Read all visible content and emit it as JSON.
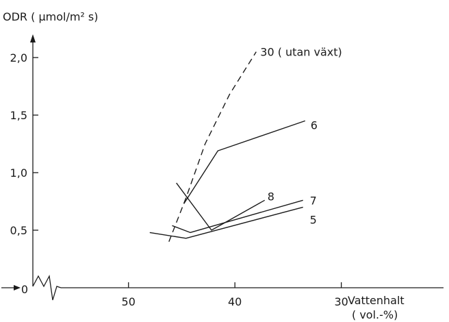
{
  "chart_data": {
    "type": "line",
    "title": "",
    "ylabel": "ODR ( µmol/m² s)",
    "xlabel": "Vattenhalt",
    "xlabel_unit": "( vol.-%)",
    "x_reversed": true,
    "xlim": [
      55,
      22
    ],
    "ylim": [
      0,
      2.0
    ],
    "x_ticks": [
      50,
      40,
      30
    ],
    "x_tick_labels": [
      "50",
      "40",
      "30"
    ],
    "y_ticks": [
      0,
      0.5,
      1.0,
      1.5,
      2.0
    ],
    "y_tick_labels": [
      "0",
      "0,5",
      "1,0",
      "1,5",
      "2,0"
    ],
    "zero_label": "0",
    "axis_break": true,
    "grid": false,
    "legend": "none (series labelled at line ends)",
    "series": [
      {
        "name": "30 (utan växt)",
        "label": "30 ( utan växt)",
        "style": "dashed",
        "x": [
          46.2,
          44.6,
          42.8,
          40.5,
          38.0
        ],
        "y": [
          0.4,
          0.78,
          1.25,
          1.68,
          2.05
        ]
      },
      {
        "name": "6",
        "label": "6",
        "style": "solid",
        "x": [
          44.8,
          41.6,
          33.4
        ],
        "y": [
          0.73,
          1.19,
          1.45
        ]
      },
      {
        "name": "8",
        "label": "8",
        "style": "solid",
        "x": [
          45.5,
          42.2,
          37.2
        ],
        "y": [
          0.91,
          0.5,
          0.76
        ]
      },
      {
        "name": "7",
        "label": "7",
        "style": "solid",
        "x": [
          45.9,
          44.2,
          33.6
        ],
        "y": [
          0.54,
          0.48,
          0.76
        ]
      },
      {
        "name": "5",
        "label": "5",
        "style": "solid",
        "x": [
          48.0,
          44.6,
          33.6
        ],
        "y": [
          0.48,
          0.43,
          0.7
        ]
      }
    ]
  }
}
